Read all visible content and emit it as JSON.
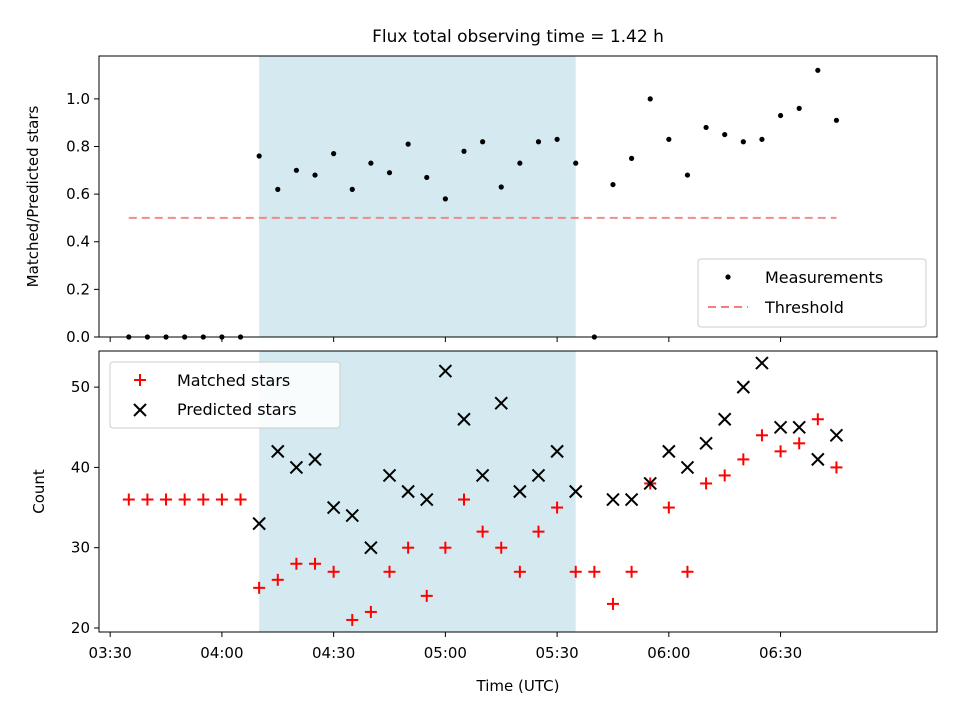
{
  "chart_data": [
    {
      "type": "scatter",
      "title": "Flux total observing time = 1.42 h",
      "xlabel": "",
      "ylabel": "Matched/Predicted stars",
      "xlim": [
        "03:27",
        "07:12"
      ],
      "ylim": [
        0,
        1.18
      ],
      "yticks": [
        0.0,
        0.2,
        0.4,
        0.6,
        0.8,
        1.0
      ],
      "ytick_labels": [
        "0.0",
        "0.2",
        "0.4",
        "0.6",
        "0.8",
        "1.0"
      ],
      "shaded_span": [
        "04:10",
        "05:35"
      ],
      "shade_color": "#d4eaf0",
      "legend_position": "lower-right",
      "series": [
        {
          "name": "Measurements",
          "marker": "dot",
          "color": "#000000",
          "x": [
            "03:35",
            "03:40",
            "03:45",
            "03:50",
            "03:55",
            "04:00",
            "04:05",
            "04:10",
            "04:15",
            "04:20",
            "04:25",
            "04:30",
            "04:35",
            "04:40",
            "04:45",
            "04:50",
            "04:55",
            "05:00",
            "05:05",
            "05:10",
            "05:15",
            "05:20",
            "05:25",
            "05:30",
            "05:35",
            "05:40",
            "05:45",
            "05:50",
            "05:55",
            "06:00",
            "06:05",
            "06:10",
            "06:15",
            "06:20",
            "06:25",
            "06:30",
            "06:35",
            "06:40",
            "06:45"
          ],
          "y": [
            0,
            0,
            0,
            0,
            0,
            0,
            0,
            0.76,
            0.62,
            0.7,
            0.68,
            0.77,
            0.62,
            0.73,
            0.69,
            0.81,
            0.67,
            0.58,
            0.78,
            0.82,
            0.63,
            0.73,
            0.82,
            0.83,
            0.73,
            0,
            0.64,
            0.75,
            1.0,
            0.83,
            0.68,
            0.88,
            0.85,
            0.82,
            0.83,
            0.93,
            0.96,
            1.12,
            0.91
          ]
        },
        {
          "name": "Threshold",
          "line_style": "dashed",
          "color": "#f08080",
          "x": [
            "03:35",
            "06:45"
          ],
          "y": [
            0.5,
            0.5
          ]
        }
      ]
    },
    {
      "type": "scatter",
      "title": "",
      "xlabel": "Time (UTC)",
      "ylabel": "Count",
      "xlim": [
        "03:27",
        "07:12"
      ],
      "ylim": [
        19.5,
        54.5
      ],
      "yticks": [
        20,
        30,
        40,
        50
      ],
      "ytick_labels": [
        "20",
        "30",
        "40",
        "50"
      ],
      "xticks": [
        "03:30",
        "04:00",
        "04:30",
        "05:00",
        "05:30",
        "06:00",
        "06:30"
      ],
      "xtick_labels": [
        "03:30",
        "04:00",
        "04:30",
        "05:00",
        "05:30",
        "06:00",
        "06:30"
      ],
      "shaded_span": [
        "04:10",
        "05:35"
      ],
      "shade_color": "#d4eaf0",
      "legend_position": "upper-left",
      "series": [
        {
          "name": "Matched stars",
          "marker": "plus",
          "color": "#ff0000",
          "x": [
            "03:35",
            "03:40",
            "03:45",
            "03:50",
            "03:55",
            "04:00",
            "04:05",
            "04:10",
            "04:15",
            "04:20",
            "04:25",
            "04:30",
            "04:35",
            "04:40",
            "04:45",
            "04:50",
            "04:55",
            "05:00",
            "05:05",
            "05:10",
            "05:15",
            "05:20",
            "05:25",
            "05:30",
            "05:35",
            "05:40",
            "05:45",
            "05:50",
            "05:55",
            "06:00",
            "06:05",
            "06:10",
            "06:15",
            "06:20",
            "06:25",
            "06:30",
            "06:35",
            "06:40",
            "06:45"
          ],
          "y": [
            36,
            36,
            36,
            36,
            36,
            36,
            36,
            25,
            26,
            28,
            28,
            27,
            21,
            22,
            27,
            30,
            24,
            30,
            36,
            32,
            30,
            27,
            32,
            35,
            27,
            27,
            23,
            27,
            38,
            35,
            27,
            38,
            39,
            41,
            44,
            42,
            43,
            46,
            40
          ]
        },
        {
          "name": "Predicted stars",
          "marker": "x",
          "color": "#000000",
          "x": [
            "04:10",
            "04:15",
            "04:20",
            "04:25",
            "04:30",
            "04:35",
            "04:40",
            "04:45",
            "04:50",
            "04:55",
            "05:00",
            "05:05",
            "05:10",
            "05:15",
            "05:20",
            "05:25",
            "05:30",
            "05:35",
            "05:45",
            "05:50",
            "05:55",
            "06:00",
            "06:05",
            "06:10",
            "06:15",
            "06:20",
            "06:25",
            "06:30",
            "06:35",
            "06:40",
            "06:45"
          ],
          "y": [
            33,
            42,
            40,
            41,
            35,
            34,
            30,
            39,
            37,
            36,
            52,
            46,
            39,
            48,
            37,
            39,
            42,
            37,
            36,
            36,
            38,
            42,
            40,
            43,
            46,
            50,
            53,
            45,
            45,
            41,
            44
          ]
        }
      ]
    }
  ]
}
